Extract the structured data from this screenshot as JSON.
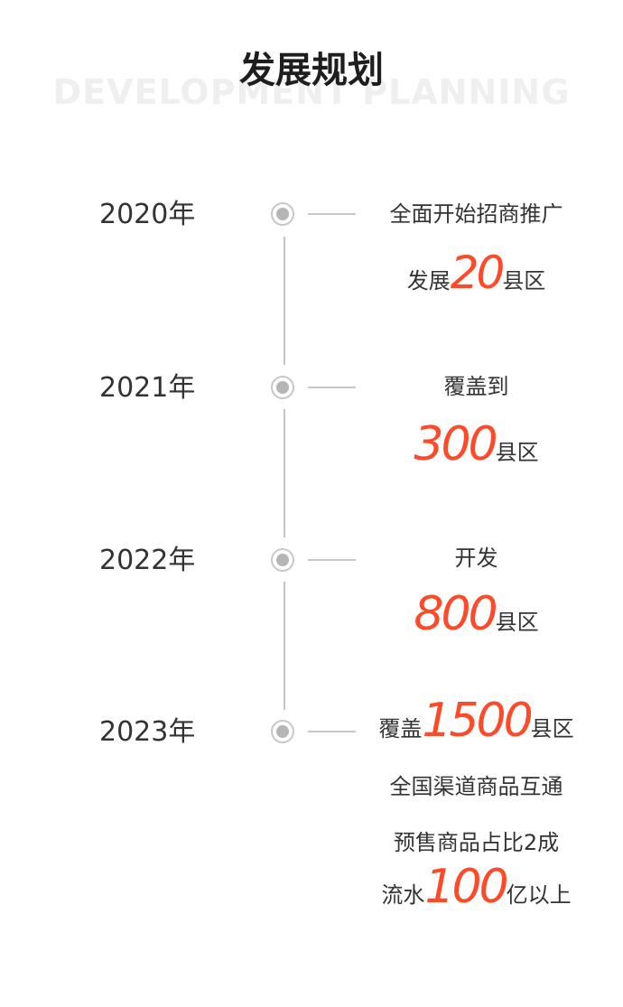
{
  "header": {
    "title": "发展规划",
    "subtitle_en": "DEVELOPMENT PLANNING"
  },
  "colors": {
    "accent": "#ff4a2a",
    "text": "#333333",
    "line": "#c4c4c4"
  },
  "timeline": [
    {
      "year": "2020年",
      "line1": "全面开始招商推广",
      "line2_pre": "发展",
      "line2_num": "20",
      "line2_post": "县区"
    },
    {
      "year": "2021年",
      "line1": "覆盖到",
      "line2_num": "300",
      "line2_post": "县区"
    },
    {
      "year": "2022年",
      "line1": "开发",
      "line2_num": "800",
      "line2_post": "县区"
    },
    {
      "year": "2023年",
      "line1_pre": "覆盖",
      "line1_num": "1500",
      "line1_post": "县区",
      "line2": "全国渠道商品互通",
      "line3": "预售商品占比2成",
      "line4_pre": "流水",
      "line4_num": "100",
      "line4_post": "亿以上"
    }
  ]
}
